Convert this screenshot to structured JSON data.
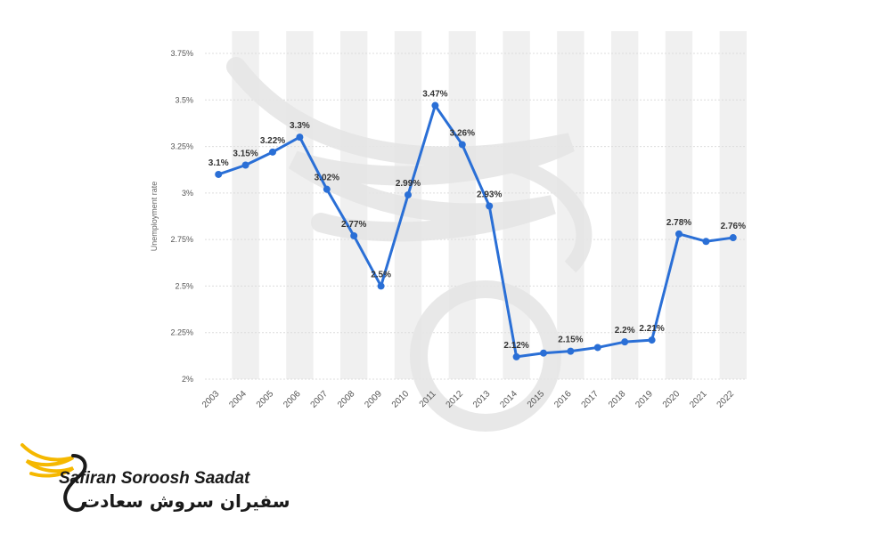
{
  "chart_data": {
    "type": "line",
    "ylabel": "Unemployment rate",
    "xlabel": "",
    "ylim": [
      2,
      3.75
    ],
    "y_ticks": [
      "3.75%",
      "3.5%",
      "3.25%",
      "3%",
      "2.75%",
      "2.5%",
      "2.25%",
      "2%"
    ],
    "y_tick_values": [
      3.75,
      3.5,
      3.25,
      3,
      2.75,
      2.5,
      2.25,
      2
    ],
    "categories": [
      "2003",
      "2004",
      "2005",
      "2006",
      "2007",
      "2008",
      "2009",
      "2010",
      "2011",
      "2012",
      "2013",
      "2014",
      "2015",
      "2016",
      "2017",
      "2018",
      "2019",
      "2020",
      "2021",
      "2022"
    ],
    "series": [
      {
        "values": [
          3.1,
          3.15,
          3.22,
          3.3,
          3.02,
          2.77,
          2.5,
          2.99,
          3.47,
          3.26,
          2.93,
          2.12,
          2.14,
          2.15,
          2.17,
          2.2,
          2.21,
          2.78,
          2.74,
          2.76
        ],
        "labels": [
          "3.1%",
          "3.15%",
          "3.22%",
          "3.3%",
          "3.02%",
          "2.77%",
          "2.5%",
          "2.99%",
          "3.47%",
          "3.26%",
          "2.93%",
          "2.12%",
          "",
          "2.15%",
          "",
          "2.2%",
          "2.21%",
          "2.78%",
          "",
          "2.76%"
        ],
        "color": "#2a6fd6"
      }
    ],
    "grid": true,
    "legend": "none",
    "band_color": "#f0f0f0"
  },
  "logo": {
    "name_en": "Safiran Soroosh Saadat",
    "name_fa": "سفیران سروش سعادت",
    "accent_color": "#f5b800"
  }
}
